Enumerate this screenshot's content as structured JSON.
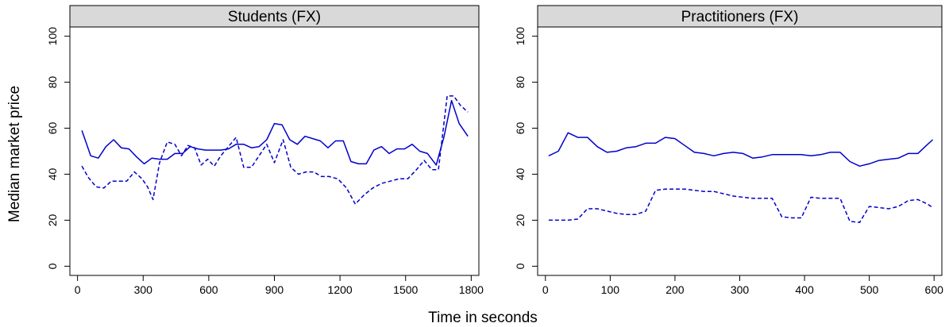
{
  "figure": {
    "xlabel": "Time in seconds",
    "ylabel": "Median market price",
    "line_color": "#0000cc"
  },
  "chart_data": [
    {
      "type": "line",
      "title": "Students (FX)",
      "xlim": [
        0,
        1800
      ],
      "ylim": [
        0,
        100
      ],
      "xticks": [
        0,
        300,
        600,
        900,
        1200,
        1500,
        1800
      ],
      "yticks": [
        0,
        20,
        40,
        60,
        80,
        100
      ],
      "series": [
        {
          "style": "solid",
          "x": [
            20,
            60,
            95,
            130,
            165,
            200,
            235,
            270,
            305,
            340,
            375,
            410,
            445,
            480,
            515,
            550,
            585,
            620,
            655,
            690,
            725,
            760,
            795,
            830,
            865,
            900,
            935,
            970,
            1005,
            1040,
            1075,
            1110,
            1145,
            1180,
            1215,
            1250,
            1285,
            1320,
            1355,
            1390,
            1425,
            1460,
            1495,
            1530,
            1565,
            1600,
            1640,
            1675,
            1710,
            1745,
            1785
          ],
          "y": [
            59,
            48,
            47,
            52,
            55,
            51.5,
            51,
            47.5,
            44.5,
            47,
            46.5,
            46.5,
            49,
            49,
            52,
            51,
            50.5,
            50.5,
            50.5,
            51,
            53,
            53,
            51.5,
            52,
            55,
            62,
            61.5,
            55,
            53,
            56.5,
            55.5,
            54.5,
            51.5,
            54.5,
            54.5,
            45.5,
            44.5,
            44.5,
            50.5,
            52,
            49,
            51,
            51,
            53,
            50,
            49,
            44,
            56,
            72,
            62,
            56.5
          ]
        },
        {
          "style": "dashed",
          "x": [
            20,
            50,
            85,
            120,
            155,
            190,
            225,
            260,
            295,
            320,
            345,
            375,
            410,
            445,
            475,
            505,
            535,
            565,
            595,
            625,
            655,
            690,
            725,
            760,
            795,
            830,
            865,
            900,
            940,
            975,
            1010,
            1045,
            1080,
            1115,
            1150,
            1190,
            1230,
            1270,
            1310,
            1350,
            1390,
            1430,
            1470,
            1510,
            1550,
            1585,
            1620,
            1650,
            1690,
            1720,
            1750,
            1785
          ],
          "y": [
            43.5,
            38.5,
            34.5,
            34,
            37,
            37,
            37,
            41,
            38,
            34.5,
            29,
            45,
            54,
            53,
            48,
            52.5,
            51.5,
            44,
            46.5,
            43.5,
            48,
            52,
            56,
            43,
            43,
            48,
            53,
            45,
            55,
            43,
            40,
            41,
            41,
            39,
            39,
            38,
            34,
            27,
            31,
            34,
            36,
            37,
            38,
            38,
            42,
            46,
            42,
            42,
            74,
            74,
            70,
            67
          ]
        }
      ]
    },
    {
      "type": "line",
      "title": "Practitioners (FX)",
      "xlim": [
        0,
        600
      ],
      "ylim": [
        0,
        100
      ],
      "xticks": [
        0,
        100,
        200,
        300,
        400,
        500,
        600
      ],
      "yticks": [
        0,
        20,
        40,
        60,
        80,
        100
      ],
      "series": [
        {
          "style": "solid",
          "x": [
            5,
            20,
            35,
            50,
            65,
            80,
            95,
            110,
            125,
            140,
            155,
            170,
            185,
            200,
            215,
            230,
            245,
            260,
            275,
            290,
            305,
            320,
            335,
            350,
            365,
            380,
            395,
            410,
            425,
            440,
            455,
            470,
            485,
            500,
            515,
            530,
            545,
            560,
            575,
            590,
            598
          ],
          "y": [
            48,
            50,
            58,
            56,
            56,
            52,
            49.5,
            50,
            51.5,
            52,
            53.5,
            53.5,
            56,
            55.5,
            52.5,
            49.5,
            49,
            48,
            49,
            49.5,
            49,
            47,
            47.5,
            48.5,
            48.5,
            48.5,
            48.5,
            48,
            48.5,
            49.5,
            49.5,
            45.5,
            43.5,
            44.5,
            46,
            46.5,
            47,
            49,
            49,
            53,
            55
          ]
        },
        {
          "style": "dashed",
          "x": [
            5,
            20,
            35,
            50,
            65,
            80,
            95,
            110,
            125,
            140,
            155,
            170,
            185,
            200,
            215,
            230,
            245,
            260,
            275,
            290,
            305,
            320,
            335,
            350,
            365,
            380,
            395,
            410,
            425,
            440,
            455,
            470,
            485,
            500,
            515,
            530,
            545,
            560,
            575,
            590,
            598
          ],
          "y": [
            20,
            20,
            20,
            20.5,
            25,
            25,
            24,
            23,
            22.5,
            22.5,
            24,
            33,
            33.5,
            33.5,
            33.5,
            33,
            32.5,
            32.5,
            31.5,
            30.5,
            30,
            29.5,
            29.5,
            29.5,
            21.5,
            21,
            21,
            30,
            29.5,
            29.5,
            29.5,
            19.5,
            19,
            26,
            25.5,
            25,
            26,
            28.5,
            29,
            27,
            25.5
          ]
        }
      ]
    }
  ]
}
